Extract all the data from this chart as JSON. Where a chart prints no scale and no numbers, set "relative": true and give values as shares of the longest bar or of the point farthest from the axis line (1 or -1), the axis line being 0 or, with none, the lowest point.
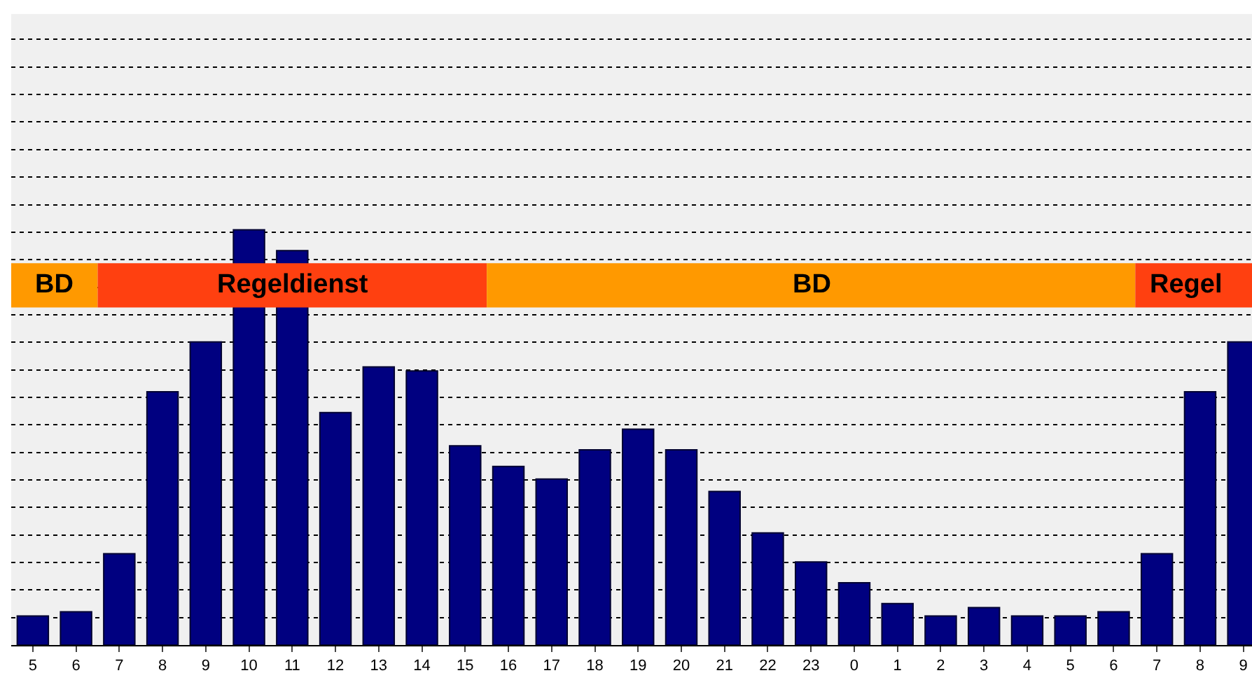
{
  "chart_data": {
    "type": "bar",
    "relative": true,
    "grid": "y",
    "categories": [
      "5",
      "6",
      "7",
      "8",
      "9",
      "10",
      "11",
      "12",
      "13",
      "14",
      "15",
      "16",
      "17",
      "18",
      "19",
      "20",
      "21",
      "22",
      "23",
      "0",
      "1",
      "2",
      "3",
      "4",
      "5",
      "6",
      "7",
      "8",
      "9"
    ],
    "values": [
      0.07,
      0.08,
      0.22,
      0.61,
      0.73,
      1.0,
      0.95,
      0.56,
      0.67,
      0.66,
      0.48,
      0.43,
      0.4,
      0.47,
      0.52,
      0.47,
      0.37,
      0.27,
      0.2,
      0.15,
      0.1,
      0.07,
      0.09,
      0.07,
      0.07,
      0.08,
      0.22,
      0.61,
      0.73
    ],
    "color": "#000080",
    "annotations": [
      "BD",
      "Regeldienst",
      "BD",
      "Regel"
    ]
  }
}
